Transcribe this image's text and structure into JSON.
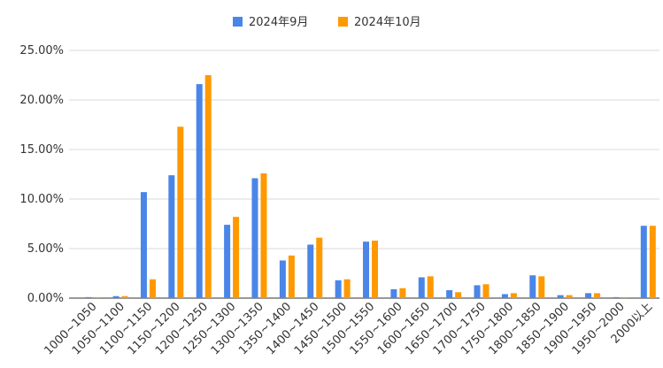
{
  "chart_data": {
    "type": "bar",
    "title": "",
    "xlabel": "",
    "ylabel": "",
    "ylim": [
      0,
      25
    ],
    "y_ticks": [
      "0.00%",
      "5.00%",
      "10.00%",
      "15.00%",
      "20.00%",
      "25.00%"
    ],
    "y_tick_values": [
      0,
      5,
      10,
      15,
      20,
      25
    ],
    "grid": true,
    "legend_position": "top",
    "categories": [
      "1000~1050",
      "1050~1100",
      "1100~1150",
      "1150~1200",
      "1200~1250",
      "1250~1300",
      "1300~1350",
      "1350~1400",
      "1400~1450",
      "1450~1500",
      "1500~1550",
      "1550~1600",
      "1600~1650",
      "1650~1700",
      "1700~1750",
      "1750~1800",
      "1800~1850",
      "1850~1900",
      "1900~1950",
      "1950~2000",
      "2000以上"
    ],
    "series": [
      {
        "name": "2024年9月",
        "color": "#4a86e8",
        "values": [
          0.1,
          0.2,
          10.7,
          12.4,
          21.6,
          7.4,
          12.1,
          3.8,
          5.4,
          1.8,
          5.7,
          0.9,
          2.1,
          0.8,
          1.3,
          0.4,
          2.3,
          0.3,
          0.5,
          0.1,
          7.3
        ]
      },
      {
        "name": "2024年10月",
        "color": "#ff9900",
        "values": [
          0.1,
          0.2,
          1.9,
          17.3,
          22.5,
          8.2,
          12.6,
          4.3,
          6.1,
          1.9,
          5.8,
          1.0,
          2.2,
          0.6,
          1.4,
          0.5,
          2.2,
          0.3,
          0.5,
          0.1,
          7.3
        ]
      }
    ]
  }
}
